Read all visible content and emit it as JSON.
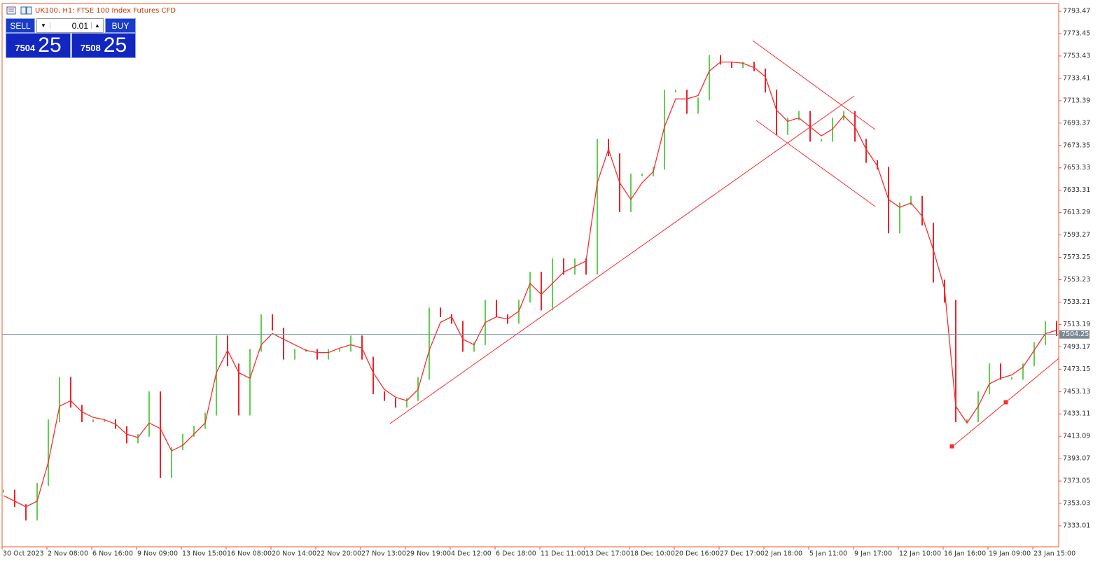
{
  "chart_data": {
    "type": "price_bars",
    "title": "UK100, H1:  FTSE 100 Index Futures CFD",
    "categories": [
      "30 Oct 2023",
      null,
      null,
      null,
      "2 Nov 08:00",
      null,
      null,
      null,
      "6 Nov 16:00",
      null,
      null,
      null,
      "9 Nov 09:00",
      null,
      null,
      null,
      "13 Nov 15:00",
      null,
      null,
      null,
      "16 Nov 08:00",
      null,
      null,
      null,
      "20 Nov 14:00",
      null,
      null,
      null,
      "22 Nov 20:00",
      null,
      null,
      null,
      "27 Nov 13:00",
      null,
      null,
      null,
      "29 Nov 19:00",
      null,
      null,
      null,
      "4 Dec 12:00",
      null,
      null,
      null,
      "6 Dec 18:00",
      null,
      null,
      null,
      "11 Dec 11:00",
      null,
      null,
      null,
      "13 Dec 17:00",
      null,
      null,
      null,
      "18 Dec 10:00",
      null,
      null,
      null,
      "20 Dec 16:00",
      null,
      null,
      null,
      "27 Dec 17:00",
      null,
      null,
      null,
      "2 Jan 18:00",
      null,
      null,
      null,
      "5 Jan 11:00",
      null,
      null,
      null,
      "9 Jan 17:00",
      null,
      null,
      null,
      "12 Jan 10:00",
      null,
      null,
      null,
      "16 Jan 16:00",
      null,
      null,
      null,
      "19 Jan 09:00",
      null,
      null,
      null,
      "23 Jan 15:00",
      null,
      null
    ],
    "values": [
      7364,
      7351,
      7339,
      7370,
      7427,
      7465,
      7440,
      7427,
      7427,
      7427,
      7421,
      7408,
      7414,
      7452,
      7377,
      7402,
      7414,
      7421,
      7433,
      7502,
      7477,
      7433,
      7490,
      7521,
      7509,
      7483,
      7490,
      7490,
      7483,
      7490,
      7490,
      7502,
      7483,
      7452,
      7446,
      7440,
      7446,
      7465,
      7527,
      7521,
      7515,
      7490,
      7496,
      7534,
      7521,
      7515,
      7534,
      7559,
      7527,
      7571,
      7559,
      7571,
      7559,
      7678,
      7665,
      7615,
      7647,
      7647,
      7653,
      7722,
      7722,
      7703,
      7715,
      7753,
      7747,
      7744,
      7747,
      7741,
      7722,
      7684,
      7697,
      7703,
      7678,
      7678,
      7697,
      7703,
      7678,
      7659,
      7653,
      7596,
      7621,
      7627,
      7603,
      7552,
      7534,
      7427,
      7427,
      7452,
      7477,
      7465,
      7465,
      7477,
      7496,
      7515,
      7504
    ],
    "moving_average": [
      7360,
      7355,
      7350,
      7355,
      7390,
      7440,
      7445,
      7435,
      7430,
      7428,
      7424,
      7415,
      7412,
      7425,
      7420,
      7400,
      7405,
      7415,
      7425,
      7470,
      7490,
      7470,
      7465,
      7495,
      7505,
      7500,
      7495,
      7490,
      7488,
      7488,
      7492,
      7495,
      7492,
      7470,
      7455,
      7448,
      7445,
      7455,
      7490,
      7515,
      7520,
      7500,
      7495,
      7515,
      7520,
      7518,
      7525,
      7550,
      7540,
      7550,
      7560,
      7565,
      7570,
      7640,
      7670,
      7640,
      7625,
      7640,
      7650,
      7690,
      7715,
      7715,
      7718,
      7740,
      7748,
      7748,
      7747,
      7743,
      7735,
      7705,
      7695,
      7698,
      7690,
      7682,
      7688,
      7700,
      7690,
      7670,
      7655,
      7625,
      7618,
      7622,
      7610,
      7580,
      7545,
      7440,
      7425,
      7440,
      7460,
      7465,
      7468,
      7475,
      7490,
      7505,
      7508
    ],
    "ylim": [
      7314.2,
      7800.4
    ],
    "yticks": [
      7793.47,
      7773.45,
      7753.43,
      7733.41,
      7713.39,
      7693.37,
      7673.35,
      7653.33,
      7633.31,
      7613.29,
      7593.27,
      7573.25,
      7553.23,
      7533.21,
      7513.19,
      7493.17,
      7473.15,
      7453.13,
      7433.11,
      7413.09,
      7393.07,
      7373.05,
      7353.03,
      7333.01
    ],
    "current_price": 7504.25,
    "up_color": "#5fcf4f",
    "down_color": "#e8242c",
    "ma_color": "#ff2a2a"
  },
  "trade_panel": {
    "sell_label": "SELL",
    "buy_label": "BUY",
    "volume": "0.01",
    "sell_big": "7504",
    "sell_small": "25",
    "buy_big": "7508",
    "buy_small": "25"
  }
}
